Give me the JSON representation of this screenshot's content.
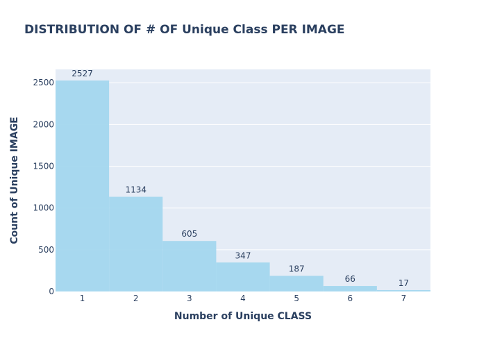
{
  "chart_data": {
    "type": "bar",
    "title": "DISTRIBUTION OF # OF Unique Class PER IMAGE",
    "xlabel": "Number of Unique CLASS",
    "ylabel": "Count of Unique IMAGE",
    "categories": [
      "1",
      "2",
      "3",
      "4",
      "5",
      "6",
      "7"
    ],
    "values": [
      2527,
      1134,
      605,
      347,
      187,
      66,
      17
    ],
    "data_labels": [
      "2527",
      "1134",
      "605",
      "347",
      "187",
      "66",
      "17"
    ],
    "ylim": [
      0,
      2660
    ],
    "yticks": [
      0,
      500,
      1000,
      1500,
      2000,
      2500
    ],
    "grid": true,
    "bar_color": "#a3d7ee",
    "plot_bg": "#e5ecf6",
    "text_color": "#2a3f5f"
  }
}
